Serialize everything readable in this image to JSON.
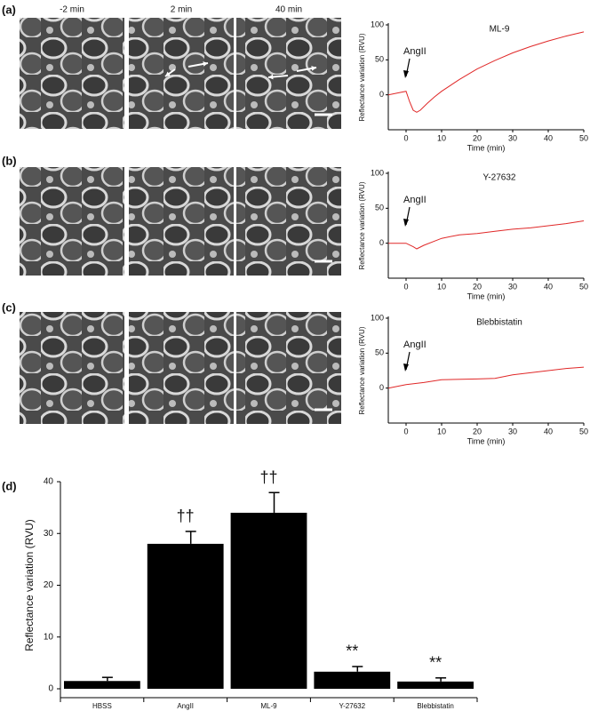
{
  "panel_labels": [
    "(a)",
    "(b)",
    "(c)",
    "(d)"
  ],
  "image_labels": [
    "-2 min",
    "2 min",
    "40 min"
  ],
  "chart_data": [
    {
      "type": "line",
      "title": "ML-9",
      "annotation": "AngII",
      "xlabel": "Time (min)",
      "ylabel": "Reflectance variation (RVU)",
      "x": [
        -5,
        -1,
        0,
        1,
        2,
        3,
        4,
        6,
        8,
        10,
        15,
        20,
        25,
        30,
        35,
        40,
        45,
        50
      ],
      "values": [
        0,
        4,
        5,
        -10,
        -22,
        -25,
        -22,
        -12,
        -3,
        5,
        22,
        37,
        49,
        60,
        69,
        77,
        84,
        90
      ],
      "color": "#e02828",
      "xlim": [
        -5,
        50
      ],
      "xticks": [
        0,
        10,
        20,
        30,
        40,
        50
      ],
      "ylim": [
        -50,
        100
      ],
      "yticks": [
        0,
        50,
        100
      ]
    },
    {
      "type": "line",
      "title": "Y-27632",
      "annotation": "AngII",
      "xlabel": "Time (min)",
      "ylabel": "Reflectance variation (RVU)",
      "x": [
        -5,
        0,
        2,
        3,
        5,
        8,
        10,
        15,
        20,
        25,
        30,
        35,
        40,
        45,
        50
      ],
      "values": [
        0,
        0,
        -5,
        -8,
        -3,
        3,
        7,
        12,
        14,
        17,
        20,
        22,
        25,
        28,
        32
      ],
      "color": "#e02828",
      "xlim": [
        -5,
        50
      ],
      "xticks": [
        0,
        10,
        20,
        30,
        40,
        50
      ],
      "ylim": [
        -50,
        100
      ],
      "yticks": [
        0,
        50,
        100
      ]
    },
    {
      "type": "line",
      "title": "Blebbistatin",
      "annotation": "AngII",
      "xlabel": "Time (min)",
      "ylabel": "Reflectance variation (RVU)",
      "x": [
        -5,
        0,
        5,
        10,
        20,
        25,
        30,
        35,
        40,
        45,
        50
      ],
      "values": [
        0,
        5,
        8,
        12,
        13,
        14,
        19,
        22,
        25,
        28,
        30
      ],
      "color": "#e02828",
      "xlim": [
        -5,
        50
      ],
      "xticks": [
        0,
        10,
        20,
        30,
        40,
        50
      ],
      "ylim": [
        -50,
        100
      ],
      "yticks": [
        0,
        50,
        100
      ]
    },
    {
      "type": "bar",
      "ylabel": "Reflectance variation (RVU)",
      "categories": [
        "HBSS",
        "AngII",
        "ML-9",
        "Y-27632",
        "Blebbistatin"
      ],
      "values": [
        1.5,
        28,
        34,
        3.3,
        1.4
      ],
      "errors": [
        0.7,
        2.4,
        3.9,
        1.0,
        0.7
      ],
      "markers": [
        null,
        "††",
        "††",
        "**",
        "**"
      ],
      "color": "#000000",
      "ylim": [
        0,
        40
      ],
      "yticks": [
        0,
        10,
        20,
        30,
        40
      ]
    }
  ]
}
